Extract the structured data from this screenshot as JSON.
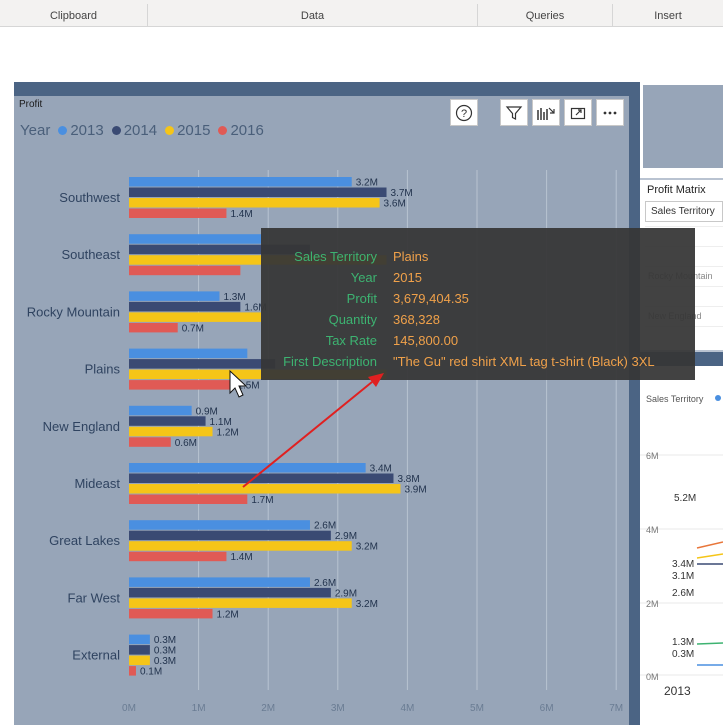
{
  "ribbon": {
    "groups": [
      {
        "label": "Clipboard"
      },
      {
        "label": "Data"
      },
      {
        "label": "Queries"
      },
      {
        "label": "Insert"
      }
    ]
  },
  "visual": {
    "title": "Profit",
    "legend_title": "Year",
    "legend": [
      {
        "label": "2013",
        "color": "#4a8fe0"
      },
      {
        "label": "2014",
        "color": "#3a4a73"
      },
      {
        "label": "2015",
        "color": "#f5c518"
      },
      {
        "label": "2016",
        "color": "#e05a55"
      }
    ],
    "toolbar": [
      "help-icon",
      "filter-icon",
      "drill-icon",
      "focus-mode-icon",
      "more-options-icon"
    ]
  },
  "chart_data": {
    "type": "bar",
    "orientation": "horizontal",
    "title": "Profit",
    "categories": [
      "Southwest",
      "Southeast",
      "Rocky Mountain",
      "Plains",
      "New England",
      "Mideast",
      "Great Lakes",
      "Far West",
      "External"
    ],
    "series": [
      {
        "name": "2013",
        "values": [
          3.2,
          1.9,
          1.3,
          1.7,
          0.9,
          3.4,
          2.6,
          2.6,
          0.3
        ],
        "labels": [
          "3.2M",
          "",
          "1.3M",
          "",
          "0.9M",
          "3.4M",
          "2.6M",
          "2.6M",
          "0.3M"
        ]
      },
      {
        "name": "2014",
        "values": [
          3.7,
          2.6,
          1.6,
          2.1,
          1.1,
          3.8,
          2.9,
          2.9,
          0.3
        ],
        "labels": [
          "3.7M",
          "",
          "1.6M",
          "",
          "1.1M",
          "3.8M",
          "2.9M",
          "2.9M",
          "0.3M"
        ]
      },
      {
        "name": "2015",
        "values": [
          3.6,
          3.7,
          1.9,
          3.7,
          1.2,
          3.9,
          3.2,
          3.2,
          0.3
        ],
        "labels": [
          "3.6M",
          "",
          "",
          "",
          "1.2M",
          "3.9M",
          "3.2M",
          "3.2M",
          "0.3M"
        ]
      },
      {
        "name": "2016",
        "values": [
          1.4,
          1.6,
          0.7,
          1.5,
          0.6,
          1.7,
          1.4,
          1.2,
          0.1
        ],
        "labels": [
          "1.4M",
          "",
          "0.7M",
          "1.5M",
          "0.6M",
          "1.7M",
          "1.4M",
          "1.2M",
          "0.1M"
        ]
      }
    ],
    "xticks": [
      "0M",
      "1M",
      "2M",
      "3M",
      "4M",
      "5M",
      "6M",
      "7M"
    ],
    "xlim": [
      0,
      7
    ],
    "grid": true
  },
  "tooltip": {
    "rows": [
      {
        "key": "Sales Territory",
        "value": "Plains"
      },
      {
        "key": "Year",
        "value": "2015"
      },
      {
        "key": "Profit",
        "value": "3,679,404.35"
      },
      {
        "key": "Quantity",
        "value": "368,328"
      },
      {
        "key": "Tax Rate",
        "value": "145,800.00"
      },
      {
        "key": "First Description",
        "value": "\"The Gu\" red shirt XML tag t-shirt (Black) 3XL"
      }
    ]
  },
  "matrix": {
    "title": "Profit Matrix",
    "selected": "Sales Territory",
    "rows": [
      "",
      "",
      "Rocky Mountain",
      "",
      "New England",
      ""
    ]
  },
  "line_visual": {
    "legend_title": "Sales Territory",
    "yticks": [
      "6M",
      "4M",
      "2M",
      "0M"
    ],
    "labels": [
      "5.2M",
      "3.4M",
      "3.1M",
      "2.6M",
      "1.3M",
      "0.3M"
    ],
    "xstart": "2013"
  },
  "annotation": {
    "arrow_color": "#e02020"
  }
}
